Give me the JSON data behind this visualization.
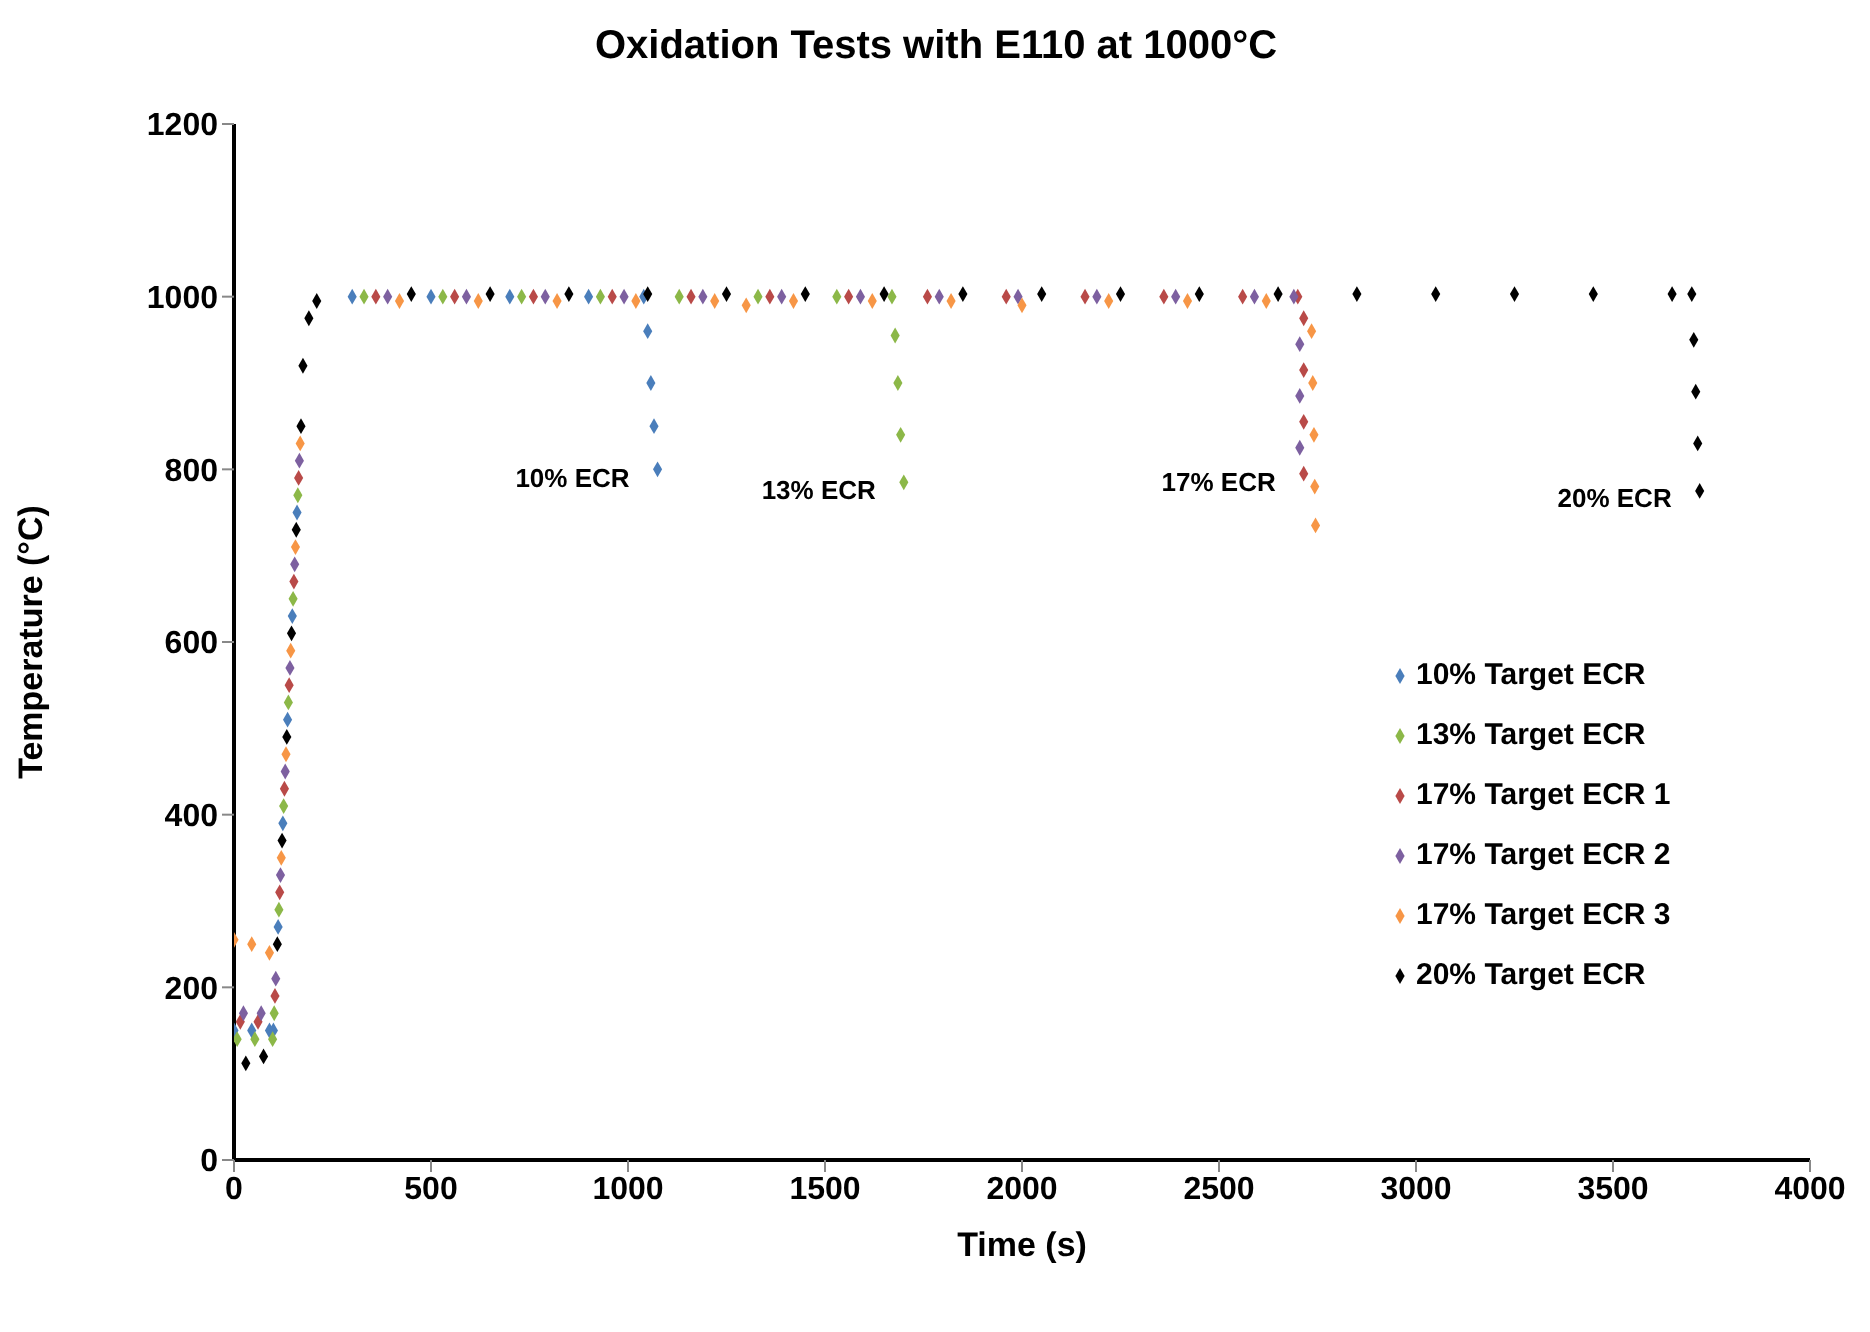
{
  "chart_data": {
    "type": "scatter",
    "title": "Oxidation Tests with E110 at 1000°C",
    "xlabel": "Time (s)",
    "ylabel": "Temperature (°C)",
    "xlim": [
      0,
      4000
    ],
    "ylim": [
      0,
      1200
    ],
    "xticks": [
      0,
      500,
      1000,
      1500,
      2000,
      2500,
      3000,
      3500,
      4000
    ],
    "yticks": [
      0,
      200,
      400,
      600,
      800,
      1000,
      1200
    ],
    "grid": false,
    "legend": "bottom right",
    "marker": "diamond",
    "annotations": [
      {
        "text": "10% ECR",
        "x": 1075,
        "y": 800
      },
      {
        "text": "13% ECR",
        "x": 1700,
        "y": 785
      },
      {
        "text": "17% ECR",
        "x": 2715,
        "y": 795
      },
      {
        "text": "20% ECR",
        "x": 3720,
        "y": 775
      }
    ],
    "series": [
      {
        "name": "10% Target ECR",
        "color": "#4a7ebb",
        "x": [
          0,
          45,
          90,
          100,
          112,
          124,
          136,
          148,
          160,
          300,
          500,
          700,
          900,
          1040,
          1050,
          1058,
          1066,
          1075
        ],
        "values": [
          150,
          150,
          150,
          150,
          270,
          390,
          510,
          630,
          750,
          1000,
          1000,
          1000,
          1000,
          1000,
          960,
          900,
          850,
          800
        ]
      },
      {
        "name": "13% Target ECR",
        "color": "#8cb848",
        "x": [
          8,
          53,
          98,
          102,
          114,
          126,
          138,
          150,
          162,
          330,
          530,
          730,
          930,
          1130,
          1330,
          1530,
          1670,
          1678,
          1685,
          1692,
          1700
        ],
        "values": [
          140,
          140,
          140,
          170,
          290,
          410,
          530,
          650,
          770,
          1000,
          1000,
          1000,
          1000,
          1000,
          1000,
          1000,
          1000,
          955,
          900,
          840,
          785
        ]
      },
      {
        "name": "17% Target ECR 1",
        "color": "#b94a48",
        "x": [
          16,
          61,
          104,
          116,
          128,
          140,
          152,
          164,
          360,
          560,
          760,
          960,
          1160,
          1360,
          1560,
          1760,
          1960,
          2160,
          2360,
          2560,
          2700,
          2715,
          2715,
          2715,
          2715
        ],
        "values": [
          160,
          160,
          190,
          310,
          430,
          550,
          670,
          790,
          1000,
          1000,
          1000,
          1000,
          1000,
          1000,
          1000,
          1000,
          1000,
          1000,
          1000,
          1000,
          1000,
          975,
          915,
          855,
          795
        ]
      },
      {
        "name": "17% Target ECR 2",
        "color": "#7d60a0",
        "x": [
          24,
          69,
          106,
          118,
          130,
          142,
          154,
          166,
          390,
          590,
          790,
          990,
          1190,
          1390,
          1590,
          1790,
          1990,
          2190,
          2390,
          2590,
          2690,
          2705,
          2705,
          2705
        ],
        "values": [
          170,
          170,
          210,
          330,
          450,
          570,
          690,
          810,
          1000,
          1000,
          1000,
          1000,
          1000,
          1000,
          1000,
          1000,
          1000,
          1000,
          1000,
          1000,
          1000,
          945,
          885,
          825
        ]
      },
      {
        "name": "17% Target ECR 3",
        "color": "#f79646",
        "x": [
          0,
          45,
          90,
          120,
          132,
          144,
          156,
          168,
          420,
          620,
          820,
          1020,
          1220,
          1300,
          1420,
          1620,
          1820,
          2000,
          2220,
          2420,
          2620,
          2735,
          2738,
          2741,
          2743,
          2745
        ],
        "values": [
          255,
          250,
          240,
          350,
          470,
          590,
          710,
          830,
          995,
          995,
          995,
          995,
          995,
          990,
          995,
          995,
          995,
          990,
          995,
          995,
          995,
          960,
          900,
          840,
          780,
          735
        ]
      },
      {
        "name": "20% Target ECR",
        "color": "#000000",
        "x": [
          30,
          75,
          110,
          122,
          134,
          146,
          158,
          170,
          175,
          190,
          210,
          450,
          650,
          850,
          1050,
          1250,
          1450,
          1650,
          1850,
          2050,
          2250,
          2450,
          2650,
          2850,
          3050,
          3250,
          3450,
          3650,
          3700,
          3705,
          3710,
          3715,
          3720
        ],
        "values": [
          112,
          120,
          250,
          370,
          490,
          610,
          730,
          850,
          920,
          975,
          995,
          1003,
          1003,
          1003,
          1003,
          1003,
          1003,
          1003,
          1003,
          1003,
          1003,
          1003,
          1003,
          1003,
          1003,
          1003,
          1003,
          1003,
          1003,
          950,
          890,
          830,
          775
        ]
      }
    ]
  }
}
